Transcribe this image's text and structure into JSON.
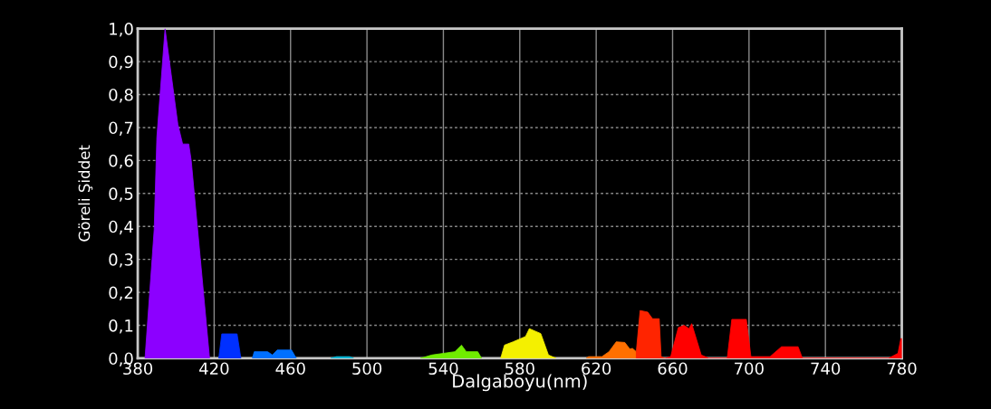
{
  "chart_data": {
    "type": "area",
    "xlabel": "Dalgaboyu(nm)",
    "ylabel": "Göreli Şiddet",
    "xlim": [
      380,
      780
    ],
    "ylim": [
      0,
      1.0
    ],
    "xticks": [
      380,
      420,
      460,
      500,
      540,
      580,
      620,
      660,
      700,
      740,
      780
    ],
    "yticks": [
      {
        "value": 0,
        "label": "0,0"
      },
      {
        "value": 0.1,
        "label": "0,1"
      },
      {
        "value": 0.2,
        "label": "0,2"
      },
      {
        "value": 0.3,
        "label": "0,3"
      },
      {
        "value": 0.4,
        "label": "0,4"
      },
      {
        "value": 0.5,
        "label": "0,5"
      },
      {
        "value": 0.6,
        "label": "0,6"
      },
      {
        "value": 0.7,
        "label": "0,7"
      },
      {
        "value": 0.8,
        "label": "0,8"
      },
      {
        "value": 0.9,
        "label": "0,9"
      },
      {
        "value": 1.0,
        "label": "1,0"
      }
    ],
    "grid": true,
    "series": [
      {
        "color": "#8c00ff",
        "x": [
          383.8,
          388.6,
          390,
          394.3,
          401,
          403.5,
          406.7,
          408,
          417.6
        ],
        "values": [
          0,
          0.39,
          0.67,
          1.0,
          0.71,
          0.65,
          0.65,
          0.6,
          0
        ]
      },
      {
        "color": "#0030ff",
        "x": [
          422.4,
          424,
          432,
          434
        ],
        "values": [
          0,
          0.074,
          0.074,
          0
        ]
      },
      {
        "color": "#0070ff",
        "x": [
          440,
          441,
          448,
          450.5,
          453,
          460.5,
          463
        ],
        "values": [
          0,
          0.02,
          0.02,
          0.01,
          0.025,
          0.025,
          0
        ]
      },
      {
        "color": "#00b8d8",
        "x": [
          481,
          484,
          491,
          493
        ],
        "values": [
          0,
          0.005,
          0.005,
          0
        ]
      },
      {
        "color": "#70ec00",
        "x": [
          528,
          534,
          540,
          546,
          549.5,
          552,
          558,
          560
        ],
        "values": [
          0,
          0.01,
          0.015,
          0.02,
          0.04,
          0.02,
          0.02,
          0
        ]
      },
      {
        "color": "#f4f000",
        "x": [
          570,
          572,
          576.5,
          583,
          585,
          591,
          595,
          599
        ],
        "values": [
          0,
          0.04,
          0.05,
          0.066,
          0.09,
          0.075,
          0.01,
          0
        ]
      },
      {
        "color": "#ff7000",
        "x": [
          614.8,
          616,
          623,
          626.7,
          630.5,
          635,
          637.6,
          639,
          641
        ],
        "values": [
          0,
          0.005,
          0.005,
          0.02,
          0.05,
          0.048,
          0.028,
          0.03,
          0.02
        ]
      },
      {
        "color": "#ff2400",
        "x": [
          641,
          643,
          647,
          649.5,
          653,
          654,
          656
        ],
        "values": [
          0.02,
          0.145,
          0.14,
          0.12,
          0.12,
          0.005,
          0
        ]
      },
      {
        "color": "#ff0000",
        "x": [
          656,
          659,
          663,
          666,
          668.6,
          670,
          675,
          679,
          688.6,
          691,
          698.6,
          701,
          711,
          717,
          725.7,
          728,
          773,
          778,
          779.5,
          780
        ],
        "values": [
          0,
          0.005,
          0.093,
          0.1,
          0.09,
          0.105,
          0.01,
          0,
          0,
          0.118,
          0.118,
          0.005,
          0.005,
          0.035,
          0.035,
          0,
          0,
          0.015,
          0.06,
          0.06
        ]
      }
    ]
  }
}
